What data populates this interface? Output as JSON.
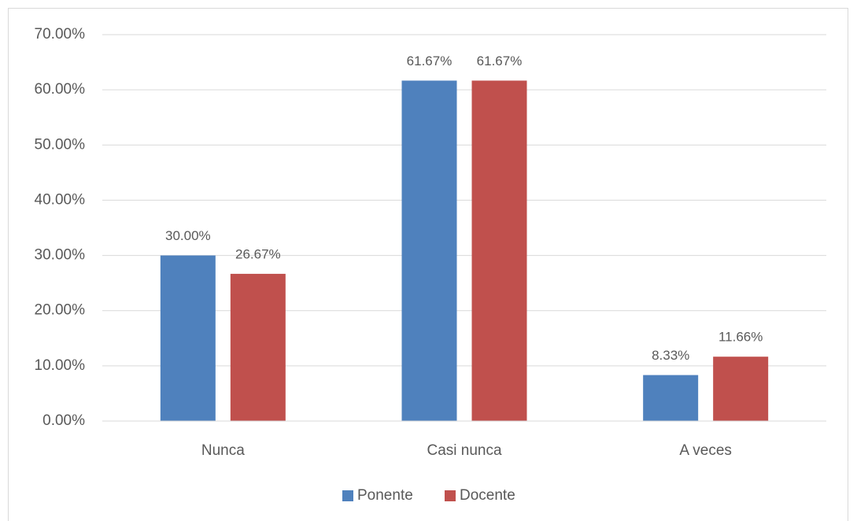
{
  "chart_data": {
    "type": "bar",
    "categories": [
      "Nunca",
      "Casi nunca",
      "A veces"
    ],
    "series": [
      {
        "name": "Ponente",
        "color": "#4f81bd",
        "values": [
          30,
          61.67,
          8.33
        ],
        "value_labels": [
          "30.00%",
          "61.67%",
          "8.33%"
        ]
      },
      {
        "name": "Docente",
        "color": "#c0504d",
        "values": [
          26.67,
          61.67,
          11.66
        ],
        "value_labels": [
          "26.67%",
          "61.67%",
          "11.66%"
        ]
      }
    ],
    "ylim": [
      0,
      70
    ],
    "yticks": [
      {
        "value": 0,
        "label": "0.00%"
      },
      {
        "value": 10,
        "label": "10.00%"
      },
      {
        "value": 20,
        "label": "20.00%"
      },
      {
        "value": 30,
        "label": "30.00%"
      },
      {
        "value": 40,
        "label": "40.00%"
      },
      {
        "value": 50,
        "label": "50.00%"
      },
      {
        "value": 60,
        "label": "60.00%"
      },
      {
        "value": 70,
        "label": "70.00%"
      }
    ],
    "grid": true,
    "legend": "bottom"
  }
}
